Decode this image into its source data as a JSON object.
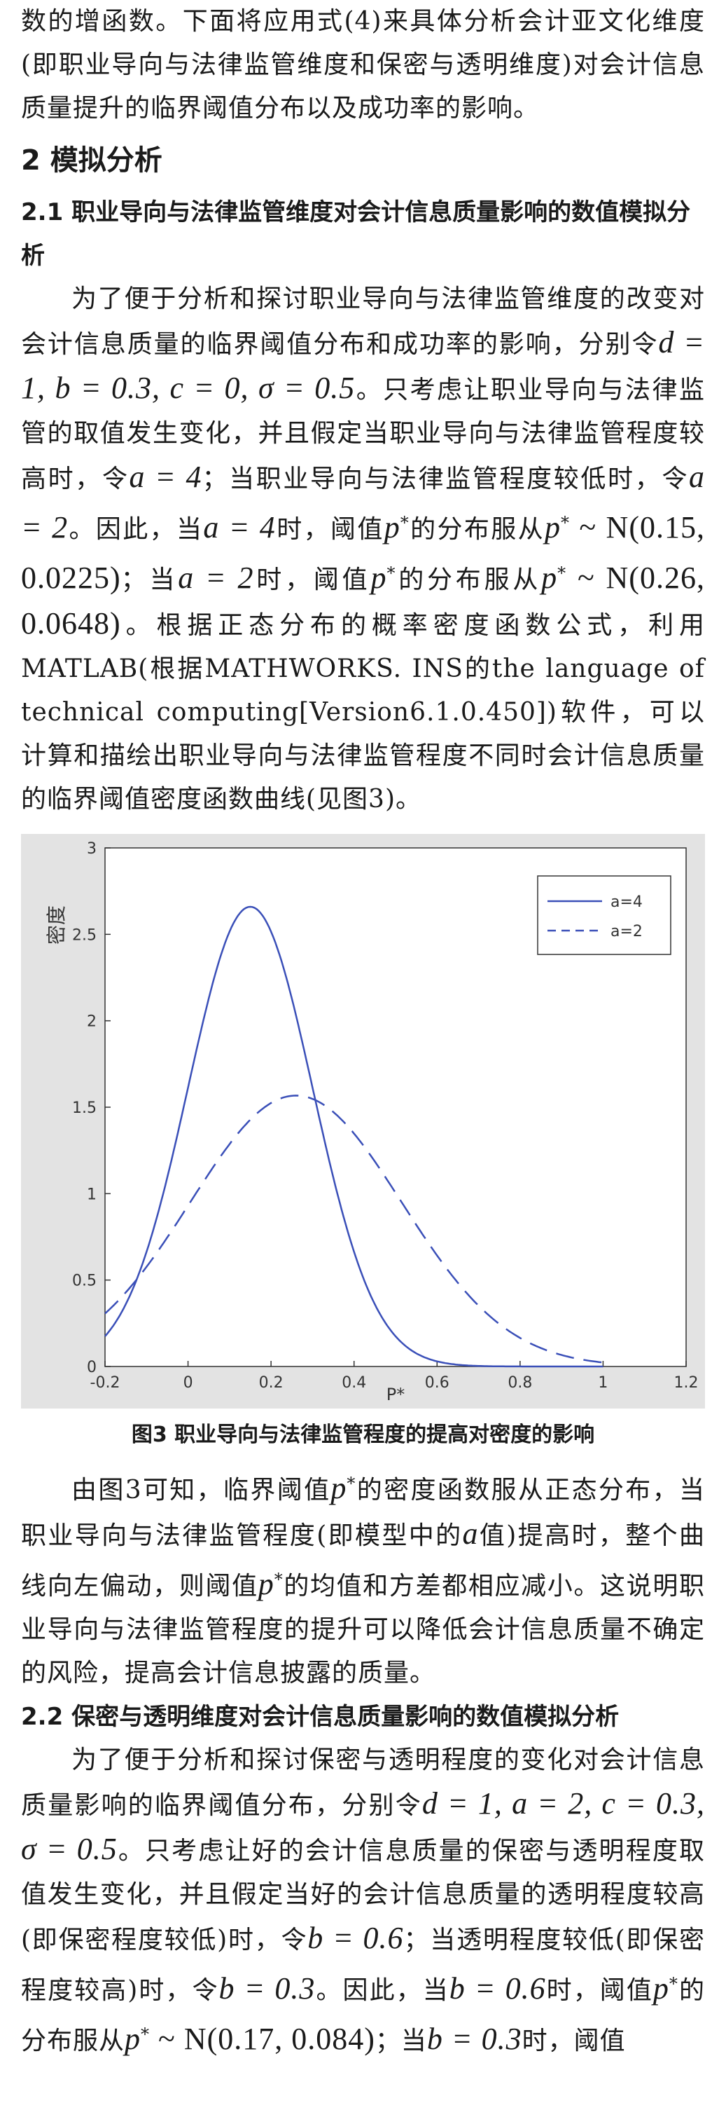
{
  "para1": {
    "text": "数的增函数。下面将应用式(4)来具体分析会计亚文化维度(即职业导向与法律监管维度和保密与透明维度)对会计信息质量提升的临界阈值分布以及成功率的影响。"
  },
  "section2": {
    "title": "2  模拟分析"
  },
  "sub21": {
    "title": "2.1  职业导向与法律监管维度对会计信息质量影响的数值模拟分析"
  },
  "para2": {
    "t1": "为了便于分析和探讨职业导向与法律监管维度的改变对会计信息质量的临界阈值分布和成功率的影响，分别令",
    "m1": "d = 1, b = 0.3, c = 0, σ = 0.5",
    "t2": "。只考虑让职业导向与法律监管的取值发生变化，并且假定当职业导向与法律监管程度较高时，令",
    "m2": "a = 4",
    "t3": "；当职业导向与法律监管程度较低时，令",
    "m3": "a = 2",
    "t4": "。因此，当",
    "m4": "a = 4",
    "t5": "时，阈值",
    "m5": "p",
    "t6": "的分布服从",
    "m6": "p",
    "m7": " ~ N(0.15, 0.0225)",
    "t7": "；当",
    "m8": "a = 2",
    "t8": "时，阈值",
    "m9": "p",
    "t9": "的分布服从",
    "m10": "p",
    "m11": " ~ N(0.26, 0.0648)",
    "t10": "。根据正态分布的概率密度函数公式，利用MATLAB(根据MATHWORKS. INS的the language of technical computing[Version6.1.0.450])软件，可以计算和描绘出职业导向与法律监管程度不同时会计信息质量的临界阈值密度函数曲线(见图3)。"
  },
  "chart_data": {
    "type": "line",
    "ylabel": "密度",
    "xlabel": "P*",
    "xlim": [
      -0.2,
      1.2
    ],
    "ylim": [
      0,
      3
    ],
    "xticks": [
      "-0.2",
      "0",
      "0.2",
      "0.4",
      "0.6",
      "0.8",
      "1",
      "1.2"
    ],
    "yticks": [
      "0",
      "0.5",
      "1",
      "1.5",
      "2",
      "2.5",
      "3"
    ],
    "legend_position": "top-right",
    "series": [
      {
        "name": "a=4",
        "style": "solid",
        "mean": 0.15,
        "variance": 0.0225,
        "x_range": [
          -0.2,
          1.0
        ]
      },
      {
        "name": "a=2",
        "style": "dashed",
        "mean": 0.26,
        "variance": 0.0648,
        "x_range": [
          -0.2,
          1.0
        ]
      }
    ],
    "color": "#3a4fb8"
  },
  "figure3": {
    "caption": "图3  职业导向与法律监管程度的提高对密度的影响"
  },
  "para3": {
    "t1": "由图3可知，临界阈值",
    "m1": "p",
    "t2": "的密度函数服从正态分布，当职业导向与法律监管程度(即模型中的",
    "m2": "a",
    "t3": "值)提高时，整个曲线向左偏动，则阈值",
    "m3": "p",
    "t4": "的均值和方差都相应减小。这说明职业导向与法律监管程度的提升可以降低会计信息质量不确定的风险，提高会计信息披露的质量。"
  },
  "sub22": {
    "title": "2.2  保密与透明维度对会计信息质量影响的数值模拟分析"
  },
  "para4": {
    "t1": "为了便于分析和探讨保密与透明程度的变化对会计信息质量影响的临界阈值分布，分别令",
    "m1": "d = 1, a = 2, c = 0.3, σ = 0.5",
    "t2": "。只考虑让好的会计信息质量的保密与透明程度取值发生变化，并且假定当好的会计信息质量的透明程度较高(即保密程度较低)时，令",
    "m2": "b = 0.6",
    "t3": "；当透明程度较低(即保密程度较高)时，令",
    "m3": "b = 0.3",
    "t4": "。因此，当",
    "m4": "b = 0.6",
    "t5": "时，阈值",
    "m5": "p",
    "t6": "的分布服从",
    "m6": "p",
    "m7": " ~ N(0.17, 0.084)",
    "t7": "；当",
    "m8": "b = 0.3",
    "t8": "时，阈值"
  },
  "sup_star": "*"
}
